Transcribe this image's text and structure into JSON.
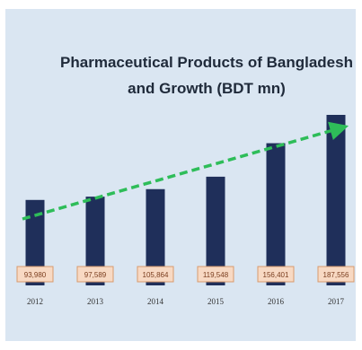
{
  "colors": {
    "background": "#dae6f2",
    "bar": "#1f2f5a",
    "label_box_fill": "#f8d9c3",
    "label_box_stroke": "#d89a6e",
    "trend_arrow": "#2ebd59"
  },
  "chart_data": {
    "type": "bar",
    "title": "Pharmaceutical Products of Bangladesh and Growth (BDT mn)",
    "title_lines": [
      "Pharmaceutical Products of Bangladesh",
      "and Growth (BDT mn)"
    ],
    "categories": [
      "2012",
      "2013",
      "2014",
      "2015",
      "2016",
      "2017"
    ],
    "values": [
      93980,
      97589,
      105864,
      119548,
      156401,
      187556
    ],
    "value_labels": [
      "93,980",
      "97,589",
      "105,864",
      "119,548",
      "156,401",
      "187,556"
    ],
    "xlabel": "",
    "ylabel": "",
    "ylim": [
      0,
      187556
    ],
    "grid": false,
    "legend": "none",
    "trend_arrow": "dashed green arrow rising from first bar to last bar"
  }
}
